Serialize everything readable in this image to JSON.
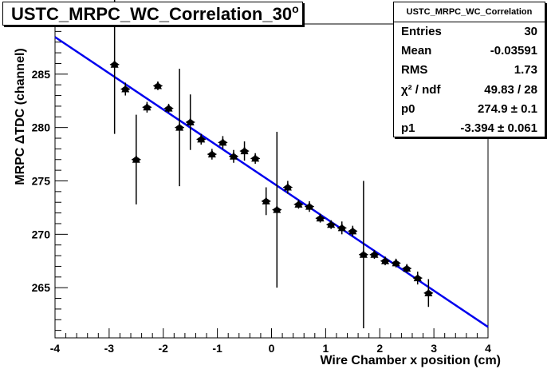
{
  "title": "USTC_MRPC_WC_Correlation_30",
  "title_degree": "o",
  "stats": {
    "name": "USTC_MRPC_WC_Correlation",
    "rows": [
      {
        "label": "Entries",
        "value": "30"
      },
      {
        "label": "Mean",
        "value": "-0.03591"
      },
      {
        "label": "RMS",
        "value": "1.73"
      },
      {
        "label": "χ² / ndf",
        "value": "49.83 / 28"
      },
      {
        "label": "p0",
        "value": "274.9 ± 0.1"
      },
      {
        "label": "p1",
        "value": "-3.394 ± 0.061"
      }
    ]
  },
  "chart_data": {
    "type": "scatter",
    "xlabel": "Wire Chamber x position (cm)",
    "ylabel": "MRPC ΔTDC (channel)",
    "xlim": [
      -4,
      4
    ],
    "ylim": [
      260.3,
      289.7
    ],
    "xticks": [
      "-4",
      "-3",
      "-2",
      "-1",
      "0",
      "1",
      "2",
      "3",
      "4"
    ],
    "yticks": [
      "265",
      "270",
      "275",
      "280",
      "285"
    ],
    "fit_line": {
      "p0": 274.9,
      "p1": -3.394,
      "color": "#0000ee"
    },
    "points": [
      {
        "x": -2.9,
        "y": 285.9,
        "err": 6.5
      },
      {
        "x": -2.7,
        "y": 283.6,
        "err": 0.6
      },
      {
        "x": -2.5,
        "y": 277.0,
        "err": 4.2
      },
      {
        "x": -2.3,
        "y": 281.9,
        "err": 0.5
      },
      {
        "x": -2.1,
        "y": 283.9,
        "err": 0.4
      },
      {
        "x": -1.9,
        "y": 281.8,
        "err": 0.4
      },
      {
        "x": -1.7,
        "y": 280.0,
        "err": 5.5
      },
      {
        "x": -1.5,
        "y": 280.5,
        "err": 2.6
      },
      {
        "x": -1.3,
        "y": 278.9,
        "err": 0.5
      },
      {
        "x": -1.1,
        "y": 277.5,
        "err": 0.5
      },
      {
        "x": -0.9,
        "y": 278.6,
        "err": 0.6
      },
      {
        "x": -0.7,
        "y": 277.3,
        "err": 0.6
      },
      {
        "x": -0.5,
        "y": 277.8,
        "err": 0.9
      },
      {
        "x": -0.3,
        "y": 277.1,
        "err": 0.5
      },
      {
        "x": -0.1,
        "y": 273.1,
        "err": 1.3
      },
      {
        "x": 0.1,
        "y": 272.3,
        "err": 7.3
      },
      {
        "x": 0.3,
        "y": 274.4,
        "err": 0.6
      },
      {
        "x": 0.5,
        "y": 272.8,
        "err": 0.4
      },
      {
        "x": 0.7,
        "y": 272.6,
        "err": 0.5
      },
      {
        "x": 0.9,
        "y": 271.5,
        "err": 0.4
      },
      {
        "x": 1.1,
        "y": 270.9,
        "err": 0.4
      },
      {
        "x": 1.3,
        "y": 270.6,
        "err": 0.6
      },
      {
        "x": 1.5,
        "y": 270.3,
        "err": 0.5
      },
      {
        "x": 1.7,
        "y": 268.1,
        "err": 6.9
      },
      {
        "x": 1.9,
        "y": 268.1,
        "err": 0.4
      },
      {
        "x": 2.1,
        "y": 267.5,
        "err": 0.4
      },
      {
        "x": 2.3,
        "y": 267.3,
        "err": 0.4
      },
      {
        "x": 2.5,
        "y": 266.8,
        "err": 0.4
      },
      {
        "x": 2.7,
        "y": 265.9,
        "err": 0.6
      },
      {
        "x": 2.9,
        "y": 264.5,
        "err": 1.3
      }
    ]
  }
}
